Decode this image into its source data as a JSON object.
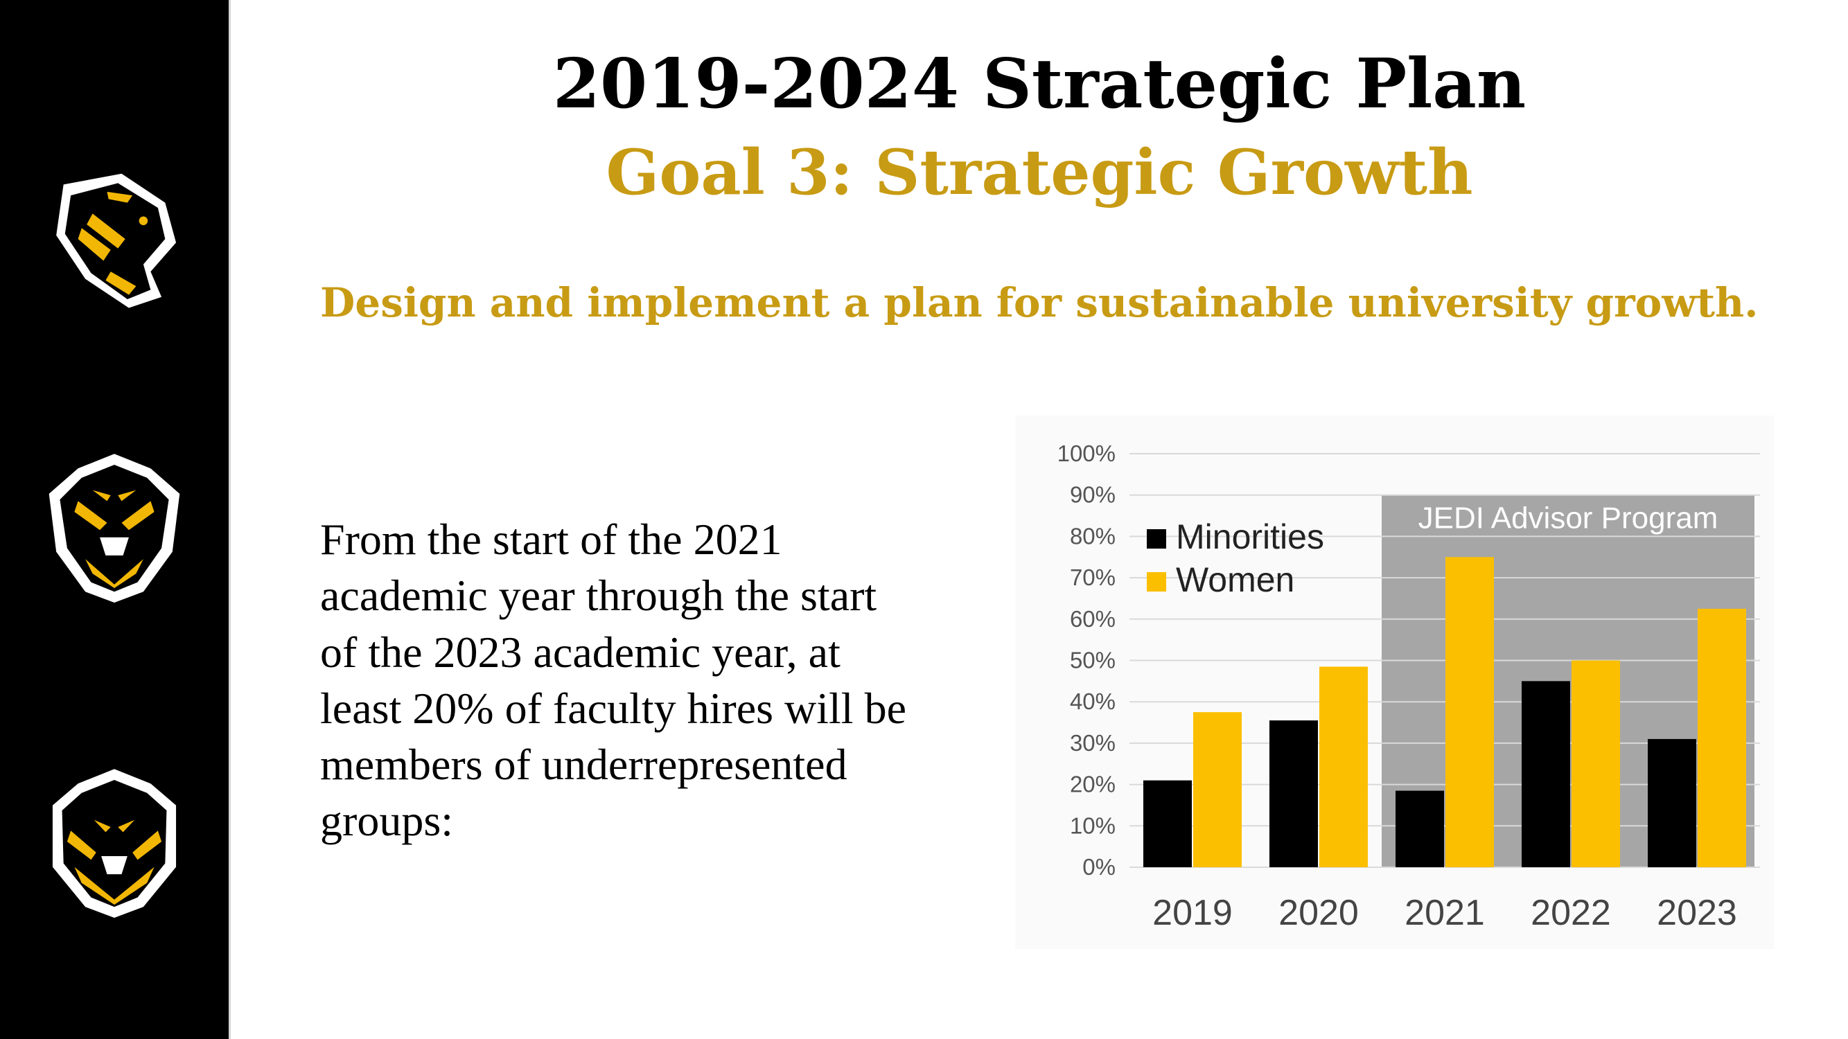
{
  "slide": {
    "title": "2019-2024 Strategic Plan",
    "goal": "Goal 3:  Strategic Growth",
    "subtitle": "Design and implement a plan for sustainable university growth.",
    "body": "From the start of the 2021\nacademic year through the start\nof the 2023 academic year, at\nleast 20% of faculty hires will be\nmembers of underrepresented\ngroups:"
  },
  "sidebar": {
    "logos": [
      "tiger-mascot-logo",
      "tiger-mascot-logo",
      "tiger-mascot-logo"
    ],
    "colors": {
      "background": "#000000",
      "gold": "#f2b705"
    }
  },
  "chart_data": {
    "type": "bar",
    "categories": [
      "2019",
      "2020",
      "2021",
      "2022",
      "2023"
    ],
    "series": [
      {
        "name": "Minorities",
        "color": "#000000",
        "values": [
          21,
          35.5,
          18.5,
          45,
          31
        ]
      },
      {
        "name": "Women",
        "color": "#fbbf00",
        "values": [
          37.5,
          48.5,
          75,
          50,
          62.5
        ]
      }
    ],
    "ylim": [
      0,
      100
    ],
    "y_ticks": [
      "0%",
      "10%",
      "20%",
      "30%",
      "40%",
      "50%",
      "60%",
      "70%",
      "80%",
      "90%",
      "100%"
    ],
    "y_tick_values": [
      0,
      10,
      20,
      30,
      40,
      50,
      60,
      70,
      80,
      90,
      100
    ],
    "highlight": {
      "label": "JEDI Advisor Program",
      "from": "2021",
      "to": "2023",
      "top": 90,
      "color": "#a6a6a6"
    },
    "legend": "top-left",
    "grid": true,
    "xlabel": "",
    "ylabel": ""
  }
}
